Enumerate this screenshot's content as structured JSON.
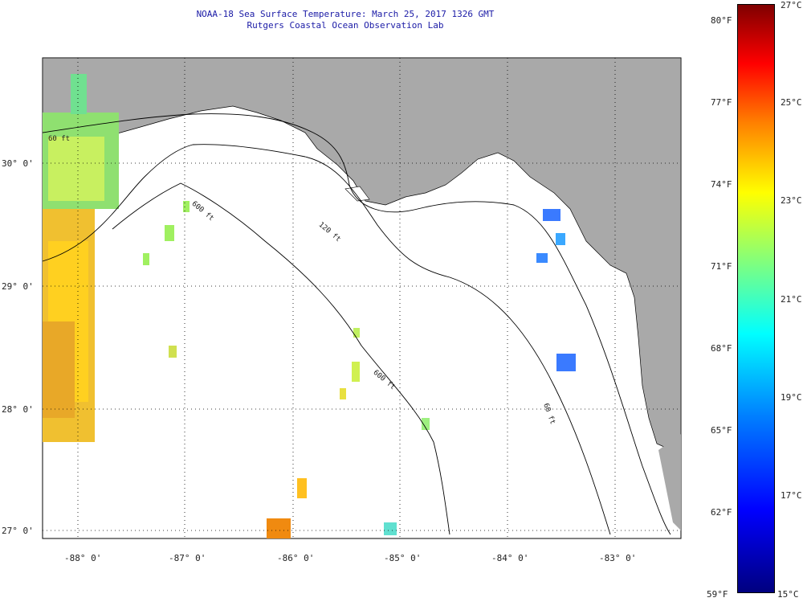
{
  "header": {
    "title": "NOAA-18 Sea Surface Temperature:  March 25, 2017 1326 GMT",
    "subtitle": "Rutgers Coastal Ocean Observation Lab"
  },
  "map": {
    "lat_labels": [
      "30° 0'",
      "29° 0'",
      "28° 0'",
      "27° 0'"
    ],
    "lon_labels": [
      "-88° 0'",
      "-87° 0'",
      "-86° 0'",
      "-85° 0'",
      "-84° 0'",
      "-83° 0'"
    ],
    "contour_labels": [
      "60 ft",
      "120 ft",
      "600 ft",
      "600 ft",
      "60 ft"
    ],
    "colors": {
      "land": "#a9a9a9",
      "water": "#ffffff",
      "title": "#1a1aa6"
    }
  },
  "colorbar": {
    "fahrenheit": [
      "80°F",
      "77°F",
      "74°F",
      "71°F",
      "68°F",
      "65°F",
      "62°F",
      "59°F"
    ],
    "celsius": [
      "27°C",
      "25°C",
      "23°C",
      "21°C",
      "19°C",
      "17°C",
      "15°C"
    ],
    "range_c": [
      15,
      27
    ],
    "range_f": [
      59,
      80.6
    ]
  }
}
